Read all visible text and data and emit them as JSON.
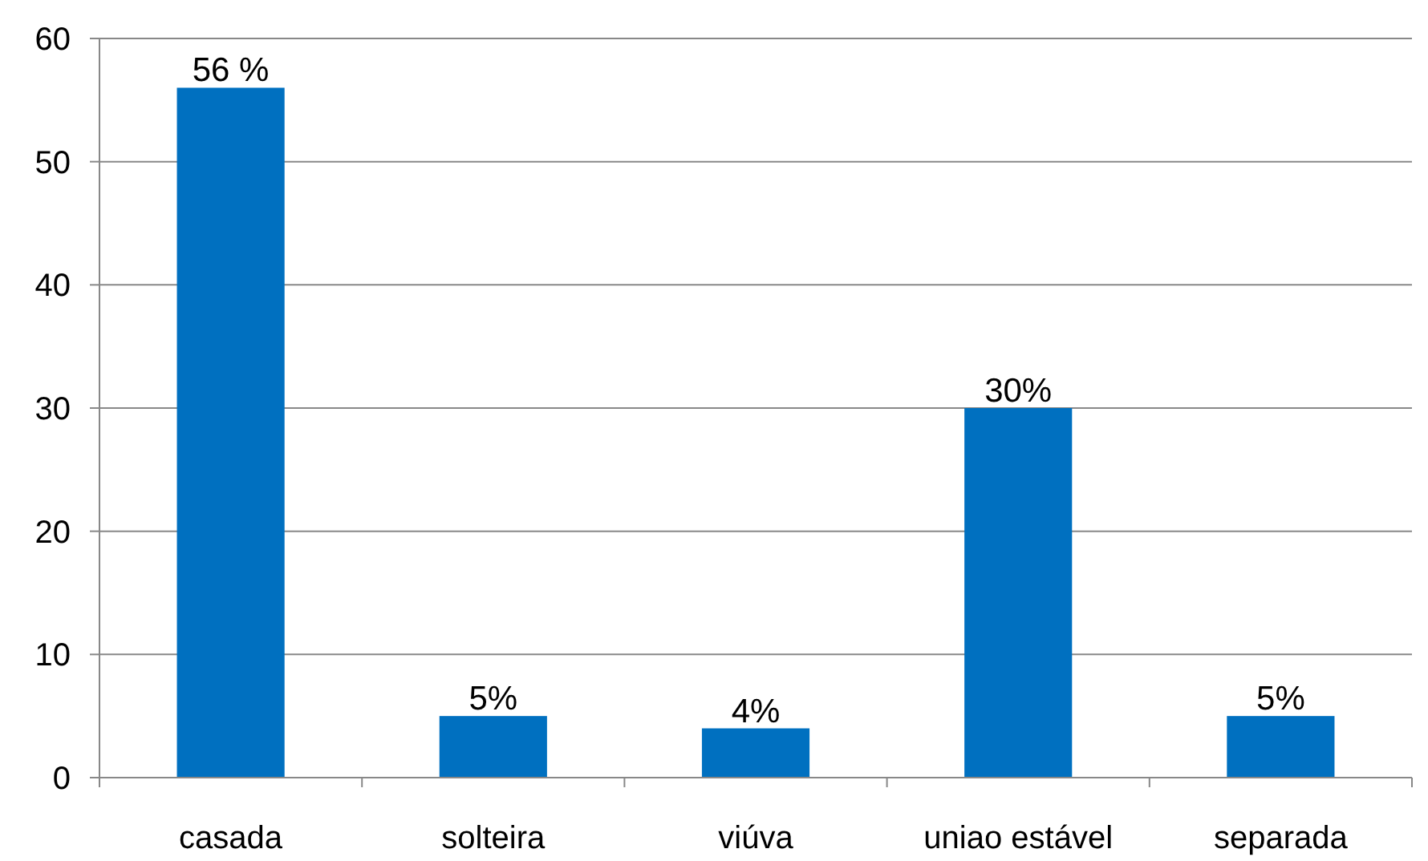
{
  "chart_data": {
    "type": "bar",
    "categories": [
      "casada",
      "solteira",
      "viúva",
      "uniao estável",
      "separada"
    ],
    "values": [
      56,
      5,
      4,
      30,
      5
    ],
    "color": "#0070c0",
    "value_labels": [
      "56 %",
      "5%",
      "4%",
      "30%",
      "5%"
    ],
    "ylim": [
      0,
      60
    ],
    "yticks": [
      0,
      10,
      20,
      30,
      40,
      50,
      60
    ],
    "grid": "y"
  }
}
